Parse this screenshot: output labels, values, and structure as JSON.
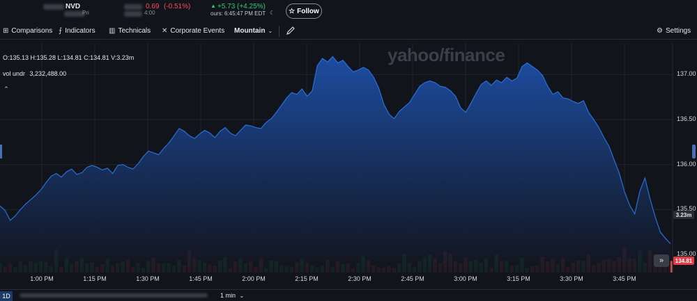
{
  "header": {
    "ticker": "NVD",
    "change": "0.69",
    "change_pct": "(-0.51%)",
    "close_label": "Pri",
    "close_time": "4:00",
    "after_change": "+5.73",
    "after_change_pct": "(+4.25%)",
    "after_time": "ours: 6:45:47 PM EDT",
    "follow_label": "Follow"
  },
  "toolbar": {
    "comparisons": "Comparisons",
    "indicators": "Indicators",
    "technicals": "Technicals",
    "corporate_events": "Corporate Events",
    "chart_type": "Mountain",
    "settings": "Settings"
  },
  "legend": {
    "ohlc": "O:135.13  H:135.28  L:134.81  C:134.81  V:3.23m",
    "vol_label": "vol undr",
    "vol_value": "3,232,488.00"
  },
  "watermark": "yahoo/finance",
  "badges": {
    "volume": "3.23m",
    "price": "134.81"
  },
  "colors": {
    "up": "#1f9a5a",
    "down": "#c84a4a",
    "line": "#2a6fd6",
    "price_badge": "#e23b44"
  },
  "bottom": {
    "range": "1D",
    "interval": "1 min"
  },
  "chart_data": {
    "type": "area",
    "x_ticks": [
      "1:00 PM",
      "1:15 PM",
      "1:30 PM",
      "1:45 PM",
      "2:00 PM",
      "2:15 PM",
      "2:30 PM",
      "2:45 PM",
      "3:00 PM",
      "3:15 PM",
      "3:30 PM",
      "3:45 PM"
    ],
    "y_ticks": [
      "137.00",
      "136.50",
      "136.00",
      "135.50",
      "135.00"
    ],
    "ylim": [
      134.8,
      137.35
    ],
    "price": [
      135.54,
      135.49,
      135.38,
      135.43,
      135.5,
      135.56,
      135.61,
      135.66,
      135.72,
      135.8,
      135.87,
      135.9,
      135.86,
      135.92,
      135.95,
      135.89,
      135.91,
      135.97,
      135.99,
      135.97,
      135.94,
      135.96,
      135.9,
      135.99,
      136.0,
      135.97,
      135.95,
      136.01,
      136.09,
      136.15,
      136.13,
      136.11,
      136.18,
      136.24,
      136.32,
      136.4,
      136.37,
      136.32,
      136.29,
      136.34,
      136.38,
      136.35,
      136.3,
      136.37,
      136.41,
      136.35,
      136.32,
      136.38,
      136.44,
      136.43,
      136.41,
      136.4,
      136.47,
      136.51,
      136.58,
      136.66,
      136.74,
      136.8,
      136.78,
      136.84,
      136.76,
      136.82,
      137.1,
      137.18,
      137.14,
      137.2,
      137.13,
      137.16,
      137.09,
      137.03,
      137.05,
      137.08,
      137.05,
      136.97,
      136.85,
      136.67,
      136.56,
      136.51,
      136.59,
      136.64,
      136.69,
      136.78,
      136.87,
      136.91,
      136.93,
      136.91,
      136.87,
      136.86,
      136.82,
      136.76,
      136.63,
      136.58,
      136.68,
      136.79,
      136.89,
      136.93,
      136.88,
      136.94,
      136.91,
      136.97,
      136.93,
      136.96,
      137.09,
      137.13,
      137.09,
      137.05,
      136.99,
      136.87,
      136.78,
      136.81,
      136.74,
      136.73,
      136.7,
      136.68,
      136.71,
      136.58,
      136.5,
      136.41,
      136.3,
      136.2,
      136.05,
      135.9,
      135.7,
      135.55,
      135.45,
      135.7,
      135.85,
      135.62,
      135.42,
      135.25,
      135.18,
      135.12
    ]
  }
}
